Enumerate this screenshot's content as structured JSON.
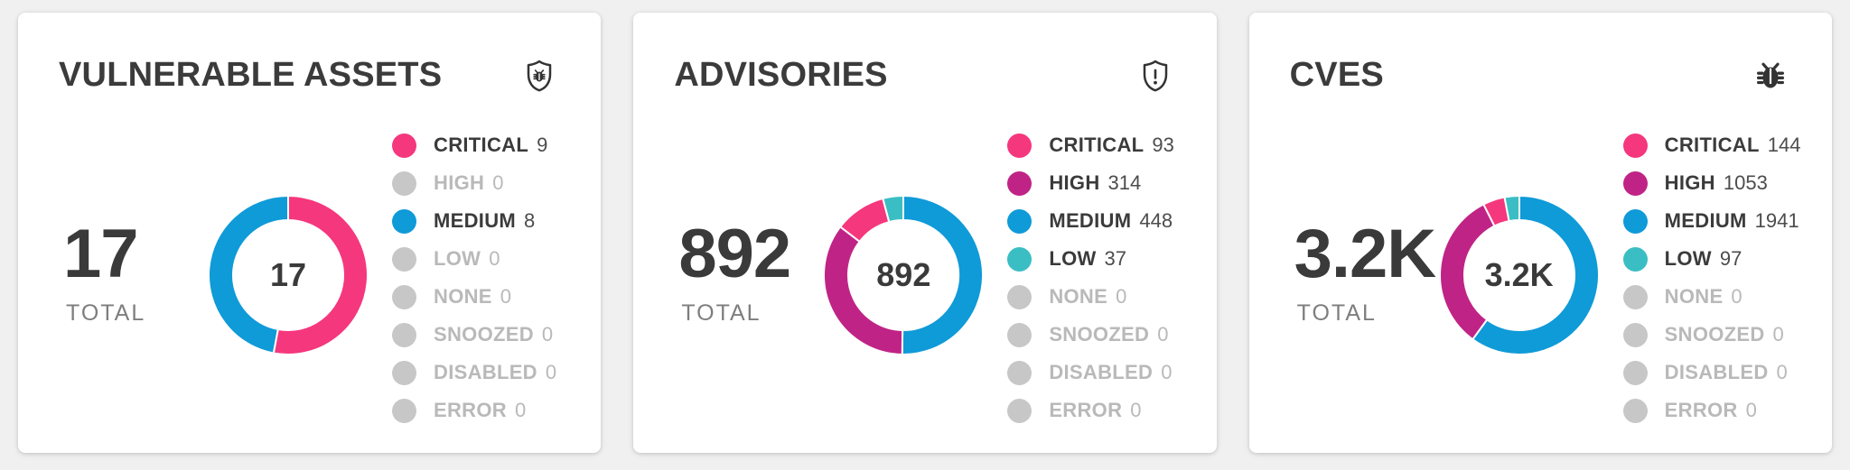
{
  "page": {
    "background": "#f0f0f1"
  },
  "severity_colors": {
    "CRITICAL": "#F5377D",
    "HIGH": "#C02386",
    "MEDIUM": "#0F9AD8",
    "LOW": "#3ABEC4",
    "NONE": "#C7C7C7",
    "SNOOZED": "#C7C7C7",
    "DISABLED": "#C7C7C7",
    "ERROR": "#C7C7C7"
  },
  "zero_color": "#C7C7C7",
  "cards": [
    {
      "icon": "bug-shield-icon"
    },
    {
      "icon": "alert-shield-icon"
    },
    {
      "icon": "bug-icon"
    }
  ],
  "chart_data": [
    {
      "type": "donut",
      "title": "VULNERABLE ASSETS",
      "total": 17,
      "total_display": "17",
      "total_label": "TOTAL",
      "center_label": "17",
      "legend_position": "right",
      "segment_order": "descending-clockwise-from-top",
      "categories": [
        "CRITICAL",
        "HIGH",
        "MEDIUM",
        "LOW",
        "NONE",
        "SNOOZED",
        "DISABLED",
        "ERROR"
      ],
      "values": [
        9,
        0,
        8,
        0,
        0,
        0,
        0,
        0
      ]
    },
    {
      "type": "donut",
      "title": "ADVISORIES",
      "total": 892,
      "total_display": "892",
      "total_label": "TOTAL",
      "center_label": "892",
      "legend_position": "right",
      "segment_order": "descending-clockwise-from-top",
      "categories": [
        "CRITICAL",
        "HIGH",
        "MEDIUM",
        "LOW",
        "NONE",
        "SNOOZED",
        "DISABLED",
        "ERROR"
      ],
      "values": [
        93,
        314,
        448,
        37,
        0,
        0,
        0,
        0
      ]
    },
    {
      "type": "donut",
      "title": "CVES",
      "total": 3235,
      "total_display": "3.2K",
      "total_label": "TOTAL",
      "center_label": "3.2K",
      "legend_position": "right",
      "segment_order": "descending-clockwise-from-top",
      "categories": [
        "CRITICAL",
        "HIGH",
        "MEDIUM",
        "LOW",
        "NONE",
        "SNOOZED",
        "DISABLED",
        "ERROR"
      ],
      "values": [
        144,
        1053,
        1941,
        97,
        0,
        0,
        0,
        0
      ]
    }
  ]
}
